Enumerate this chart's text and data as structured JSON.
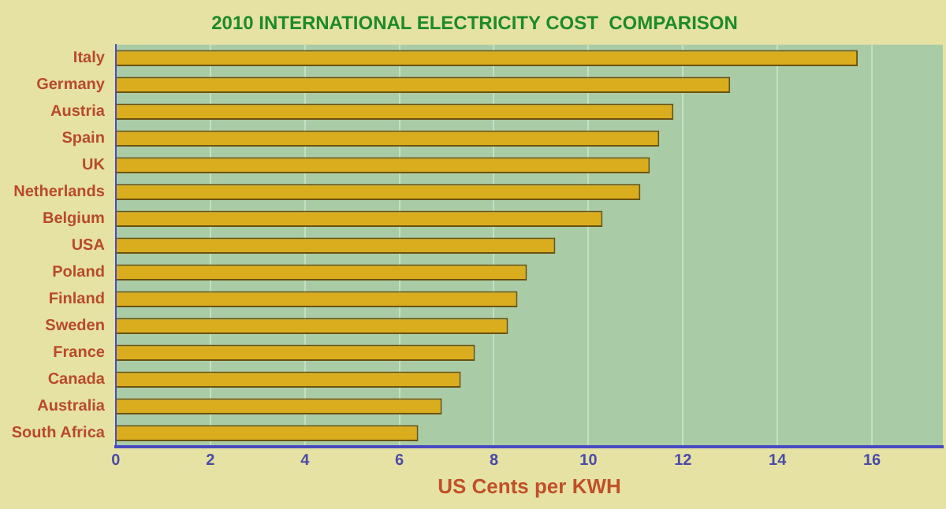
{
  "chart_data": {
    "type": "bar",
    "orientation": "horizontal",
    "title": "2010 INTERNATIONAL ELECTRICITY COST  COMPARISON",
    "xlabel": "US Cents per KWH",
    "categories": [
      "Italy",
      "Germany",
      "Austria",
      "Spain",
      "UK",
      "Netherlands",
      "Belgium",
      "USA",
      "Poland",
      "Finland",
      "Sweden",
      "France",
      "Canada",
      "Australia",
      "South Africa"
    ],
    "values": [
      15.7,
      13.0,
      11.8,
      11.5,
      11.3,
      11.1,
      10.3,
      9.3,
      8.7,
      8.5,
      8.3,
      7.6,
      7.3,
      6.9,
      6.4
    ],
    "color": "#d9ad1e",
    "xlim": [
      0,
      17.5
    ],
    "xticks": [
      0,
      2,
      4,
      6,
      8,
      10,
      12,
      14,
      16
    ],
    "grid": "x",
    "legend": false
  }
}
